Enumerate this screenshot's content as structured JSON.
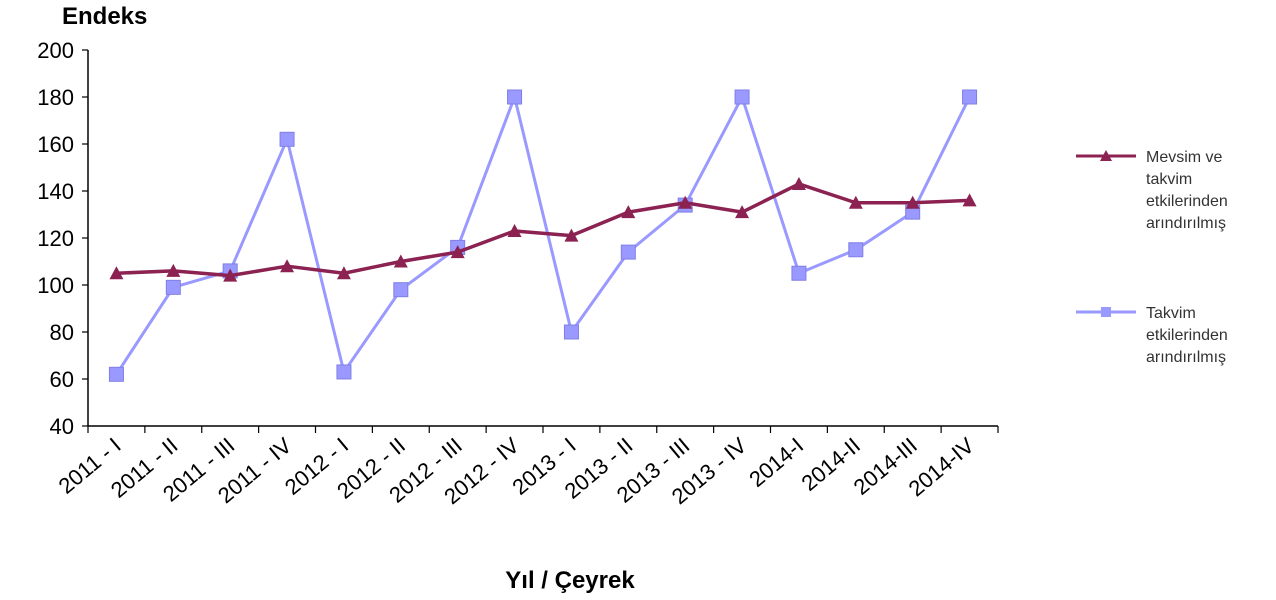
{
  "chart_data": {
    "type": "line",
    "ylabel": "Endeks",
    "xlabel": "Yıl / Çeyrek",
    "ylim": [
      40,
      200
    ],
    "yticks": [
      40,
      60,
      80,
      100,
      120,
      140,
      160,
      180,
      200
    ],
    "categories": [
      "2011 - I",
      "2011 - II",
      "2011 - III",
      "2011 - IV",
      "2012 - I",
      "2012 - II",
      "2012 - III",
      "2012 - IV",
      "2013 - I",
      "2013 - II",
      "2013 - III",
      "2013 - IV",
      "2014-I",
      "2014-II",
      "2014-III",
      "2014-IV"
    ],
    "series": [
      {
        "name": "Mevsim ve takvim etkilerinden arındırılmış",
        "legend_lines": [
          "Mevsim ve",
          "takvim",
          "etkilerinden",
          "arındırılmış"
        ],
        "color": "#8B2252",
        "marker": "triangle",
        "values": [
          105,
          106,
          104,
          108,
          105,
          110,
          114,
          123,
          121,
          131,
          135,
          131,
          143,
          135,
          135,
          136
        ]
      },
      {
        "name": "Takvim etkilerinden arındırılmış",
        "legend_lines": [
          "Takvim",
          "etkilerinden",
          "arındırılmış"
        ],
        "color": "#9999FF",
        "marker": "square",
        "values": [
          62,
          99,
          106,
          162,
          63,
          98,
          116,
          180,
          80,
          114,
          134,
          180,
          105,
          115,
          131,
          180
        ]
      }
    ],
    "legend_position": "right",
    "grid": false
  }
}
